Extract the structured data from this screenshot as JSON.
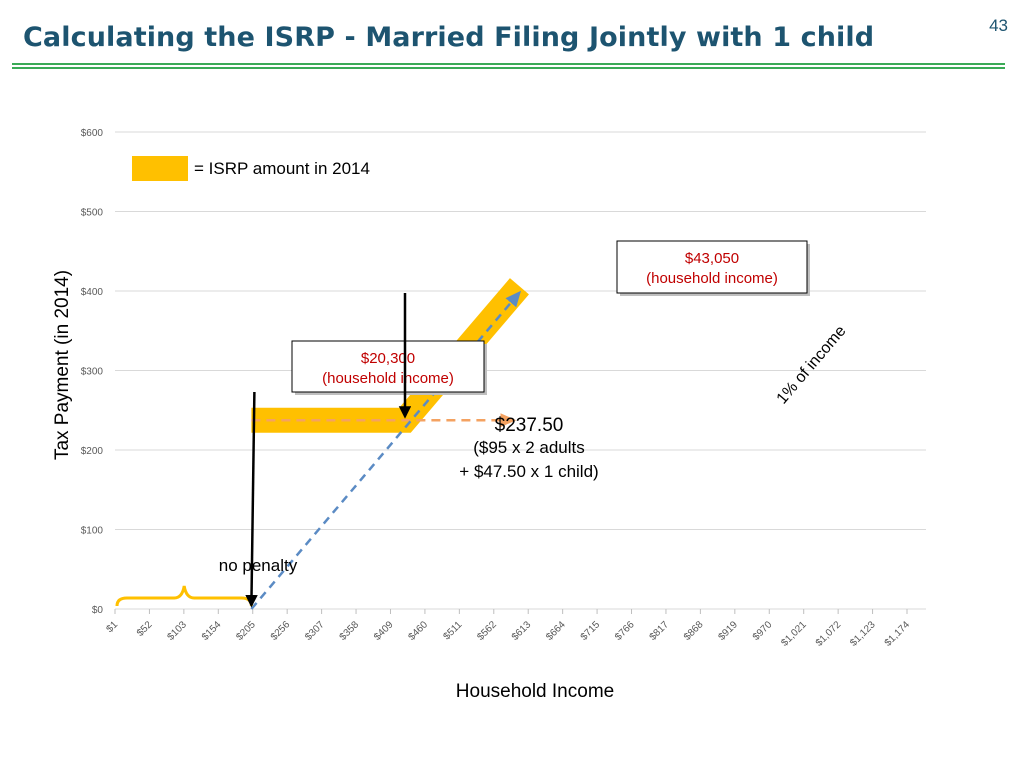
{
  "slide": {
    "title": "Calculating the ISRP - Married Filing Jointly with 1 child",
    "page_number": "43",
    "accent_color": "#3aaa56",
    "title_color": "#1d5470"
  },
  "chart_data": {
    "type": "line",
    "title": "",
    "xlabel": "Household Income",
    "ylabel": "Tax Payment (in 2014)",
    "y_ticks": [
      "$600",
      "$500",
      "$400",
      "$300",
      "$200",
      "$100",
      "$0"
    ],
    "ylim": [
      0,
      600
    ],
    "grid": true,
    "x_unit": "hundreds of dollars",
    "x_ticks": [
      "$1",
      "$52",
      "$103",
      "$154",
      "$205",
      "$256",
      "$307",
      "$358",
      "$409",
      "$460",
      "$511",
      "$562",
      "$613",
      "$664",
      "$715",
      "$766",
      "$817",
      "$868",
      "$919",
      "$970",
      "$1,021",
      "$1,072",
      "$1,123",
      "$1,174"
    ],
    "legend": {
      "position": "top-left",
      "label": "=  ISRP amount in 2014",
      "color": "#ffc000"
    },
    "series": [
      {
        "name": "ISRP amount in 2014",
        "color": "#ffc000",
        "points": [
          [
            203,
            237.5
          ],
          [
            430.5,
            237.5
          ],
          [
            600,
            406
          ]
        ]
      },
      {
        "name": "1% of income",
        "color": "#5b8bc4",
        "points": [
          [
            203,
            0
          ],
          [
            599,
            397
          ]
        ]
      },
      {
        "name": "",
        "color": "#f4a261",
        "points": [
          [
            203,
            237.5
          ],
          [
            590,
            237.5
          ]
        ]
      }
    ],
    "annotations": [
      {
        "line1": "$20,300",
        "line2": "(household income)",
        "x": 203,
        "y": 0
      },
      {
        "line1": "$43,050",
        "line2": "(household income)",
        "x": 430.5,
        "y": 237.5
      }
    ],
    "amount_label": {
      "value": "$237.50",
      "detail_lines": [
        "($95 x 2 adults",
        "+ $47.50 x 1 child)"
      ]
    },
    "diagonal_label": "1% of income",
    "bracket_label": "no penalty"
  }
}
